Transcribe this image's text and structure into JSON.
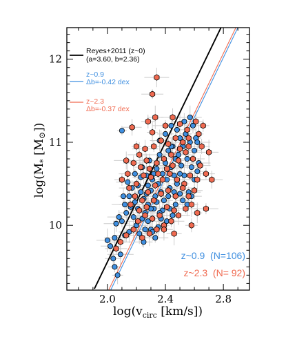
{
  "chart_data": {
    "type": "scatter",
    "xlabel": "log(v",
    "xlabel_sub": "circ",
    "xlabel_tail": " [km/s])",
    "ylabel": "log(M",
    "ylabel_sub": "*",
    "ylabel_tail": " [M",
    "ylabel_end": "])",
    "xlim": [
      1.72,
      2.98
    ],
    "ylim": [
      9.22,
      12.38
    ],
    "xticks": [
      "2.0",
      "2.4",
      "2.8"
    ],
    "yticks": [
      "10",
      "11",
      "12"
    ],
    "colors": {
      "low_z": "#3f8fe0",
      "high_z": "#f06a50",
      "relation": "#000000",
      "errbar": "#cccccc"
    },
    "legend": {
      "reyes_title": "Reyes+2011 (z~0)",
      "reyes_params": "(a=3.60, b=2.36)",
      "low_title": "z~0.9",
      "low_offset": "Δb=-0.42 dex",
      "high_title": "z~2.3",
      "high_offset": "Δb=-0.37 dex"
    },
    "counts": {
      "low": "z~0.9  (N=106)",
      "high": "z~2.3  (N= 92)"
    },
    "relations": [
      {
        "name": "Reyes+2011 (z~0)",
        "slope": 3.6,
        "intercept": 2.36,
        "x_range": [
          1.91,
          2.95
        ]
      },
      {
        "name": "z~0.9",
        "slope": 3.6,
        "intercept": 1.94,
        "x_range": [
          2.0,
          2.95
        ]
      },
      {
        "name": "z~2.3",
        "slope": 3.6,
        "intercept": 1.99,
        "x_range": [
          1.98,
          2.95
        ]
      }
    ],
    "series": [
      {
        "name": "z~0.9",
        "marker": "circle",
        "points": [
          [
            2.1,
            11.14
          ],
          [
            2.06,
            10.02
          ],
          [
            2.0,
            9.82
          ],
          [
            2.02,
            9.75
          ],
          [
            2.04,
            9.6
          ],
          [
            2.05,
            9.5
          ],
          [
            2.07,
            9.4
          ],
          [
            2.09,
            9.65
          ],
          [
            2.12,
            9.88
          ],
          [
            2.15,
            9.92
          ],
          [
            2.1,
            10.05
          ],
          [
            2.13,
            10.15
          ],
          [
            2.16,
            10.22
          ],
          [
            2.11,
            10.35
          ],
          [
            2.18,
            10.1
          ],
          [
            2.2,
            10.0
          ],
          [
            2.22,
            9.9
          ],
          [
            2.19,
            10.28
          ],
          [
            2.23,
            10.4
          ],
          [
            2.25,
            10.32
          ],
          [
            2.17,
            10.45
          ],
          [
            2.14,
            10.52
          ],
          [
            2.26,
            10.15
          ],
          [
            2.28,
            10.25
          ],
          [
            2.3,
            10.42
          ],
          [
            2.27,
            10.6
          ],
          [
            2.24,
            10.7
          ],
          [
            2.29,
            10.78
          ],
          [
            2.31,
            10.55
          ],
          [
            2.33,
            10.35
          ],
          [
            2.32,
            10.2
          ],
          [
            2.35,
            10.5
          ],
          [
            2.34,
            10.68
          ],
          [
            2.36,
            10.85
          ],
          [
            2.38,
            10.62
          ],
          [
            2.37,
            10.4
          ],
          [
            2.39,
            10.3
          ],
          [
            2.41,
            10.55
          ],
          [
            2.4,
            10.75
          ],
          [
            2.42,
            10.9
          ],
          [
            2.44,
            10.7
          ],
          [
            2.43,
            10.45
          ],
          [
            2.45,
            10.95
          ],
          [
            2.46,
            10.6
          ],
          [
            2.47,
            10.8
          ],
          [
            2.48,
            10.5
          ],
          [
            2.49,
            10.85
          ],
          [
            2.5,
            11.05
          ],
          [
            2.51,
            10.72
          ],
          [
            2.52,
            10.95
          ],
          [
            2.53,
            10.6
          ],
          [
            2.54,
            11.1
          ],
          [
            2.55,
            10.8
          ],
          [
            2.56,
            10.4
          ],
          [
            2.57,
            11.0
          ],
          [
            2.58,
            10.7
          ],
          [
            2.59,
            11.2
          ],
          [
            2.6,
            10.9
          ],
          [
            2.61,
            11.05
          ],
          [
            2.62,
            11.0
          ],
          [
            2.63,
            10.75
          ],
          [
            2.58,
            10.35
          ],
          [
            2.55,
            10.25
          ],
          [
            2.52,
            10.3
          ],
          [
            2.5,
            10.38
          ],
          [
            2.47,
            10.25
          ],
          [
            2.45,
            10.12
          ],
          [
            2.43,
            10.2
          ],
          [
            2.41,
            10.05
          ],
          [
            2.39,
            9.95
          ],
          [
            2.37,
            10.08
          ],
          [
            2.35,
            9.98
          ],
          [
            2.33,
            9.85
          ],
          [
            2.3,
            9.95
          ],
          [
            2.28,
            10.05
          ],
          [
            2.26,
            9.95
          ],
          [
            2.24,
            10.08
          ],
          [
            2.21,
            10.2
          ],
          [
            2.21,
            10.48
          ],
          [
            2.28,
            10.48
          ],
          [
            2.32,
            10.62
          ],
          [
            2.36,
            11.02
          ],
          [
            2.4,
            11.1
          ],
          [
            2.44,
            11.2
          ],
          [
            2.48,
            11.15
          ],
          [
            2.53,
            11.25
          ],
          [
            2.57,
            11.3
          ],
          [
            2.6,
            10.55
          ],
          [
            2.62,
            10.65
          ],
          [
            2.46,
            10.4
          ],
          [
            2.42,
            10.35
          ],
          [
            2.38,
            10.18
          ],
          [
            2.34,
            10.28
          ],
          [
            2.3,
            10.2
          ],
          [
            2.27,
            10.38
          ],
          [
            2.23,
            10.58
          ],
          [
            2.19,
            10.62
          ],
          [
            2.15,
            10.35
          ],
          [
            2.12,
            10.25
          ],
          [
            2.08,
            10.1
          ],
          [
            2.05,
            9.85
          ],
          [
            2.25,
            9.8
          ],
          [
            2.31,
            9.92
          ],
          [
            2.36,
            10.15
          ],
          [
            2.44,
            10.95
          ],
          [
            2.5,
            10.62
          ]
        ]
      },
      {
        "name": "z~2.3",
        "marker": "hexagon",
        "points": [
          [
            2.34,
            11.78
          ],
          [
            2.31,
            11.58
          ],
          [
            2.17,
            11.18
          ],
          [
            2.33,
            11.3
          ],
          [
            2.28,
            11.25
          ],
          [
            2.31,
            11.12
          ],
          [
            2.4,
            11.2
          ],
          [
            2.45,
            11.3
          ],
          [
            2.5,
            11.22
          ],
          [
            2.55,
            11.15
          ],
          [
            2.61,
            11.25
          ],
          [
            2.66,
            11.2
          ],
          [
            2.63,
            11.1
          ],
          [
            2.56,
            11.05
          ],
          [
            2.52,
            11.0
          ],
          [
            2.47,
            11.05
          ],
          [
            2.42,
            10.98
          ],
          [
            2.37,
            11.02
          ],
          [
            2.32,
            10.95
          ],
          [
            2.26,
            10.92
          ],
          [
            2.22,
            10.85
          ],
          [
            2.18,
            10.75
          ],
          [
            2.14,
            10.62
          ],
          [
            2.1,
            10.55
          ],
          [
            2.15,
            10.45
          ],
          [
            2.2,
            10.5
          ],
          [
            2.25,
            10.6
          ],
          [
            2.29,
            10.68
          ],
          [
            2.34,
            10.75
          ],
          [
            2.39,
            10.8
          ],
          [
            2.44,
            10.85
          ],
          [
            2.49,
            10.78
          ],
          [
            2.54,
            10.88
          ],
          [
            2.59,
            10.8
          ],
          [
            2.64,
            10.72
          ],
          [
            2.68,
            10.62
          ],
          [
            2.62,
            10.55
          ],
          [
            2.57,
            10.6
          ],
          [
            2.53,
            10.5
          ],
          [
            2.48,
            10.55
          ],
          [
            2.43,
            10.62
          ],
          [
            2.38,
            10.55
          ],
          [
            2.33,
            10.48
          ],
          [
            2.28,
            10.4
          ],
          [
            2.24,
            10.3
          ],
          [
            2.19,
            10.35
          ],
          [
            2.16,
            10.25
          ],
          [
            2.22,
            10.18
          ],
          [
            2.27,
            10.22
          ],
          [
            2.32,
            10.3
          ],
          [
            2.37,
            10.38
          ],
          [
            2.42,
            10.42
          ],
          [
            2.47,
            10.35
          ],
          [
            2.52,
            10.45
          ],
          [
            2.56,
            10.35
          ],
          [
            2.6,
            10.42
          ],
          [
            2.58,
            10.25
          ],
          [
            2.46,
            10.18
          ],
          [
            2.41,
            10.22
          ],
          [
            2.36,
            10.12
          ],
          [
            2.31,
            10.08
          ],
          [
            2.26,
            10.12
          ],
          [
            2.21,
            10.05
          ],
          [
            2.18,
            9.95
          ],
          [
            2.13,
            9.88
          ],
          [
            2.09,
            9.8
          ],
          [
            2.06,
            9.72
          ],
          [
            2.24,
            9.85
          ],
          [
            2.29,
            9.9
          ],
          [
            2.34,
            9.95
          ],
          [
            2.39,
            10.0
          ],
          [
            2.44,
            10.05
          ],
          [
            2.49,
            10.12
          ],
          [
            2.54,
            10.2
          ],
          [
            2.39,
            9.95
          ],
          [
            2.46,
            9.9
          ],
          [
            2.58,
            10.0
          ],
          [
            2.62,
            10.15
          ],
          [
            2.68,
            10.2
          ],
          [
            2.72,
            10.55
          ],
          [
            2.7,
            10.88
          ],
          [
            2.65,
            10.95
          ],
          [
            2.56,
            10.95
          ],
          [
            2.5,
            10.92
          ],
          [
            2.45,
            10.72
          ],
          [
            2.41,
            10.68
          ],
          [
            2.35,
            10.62
          ],
          [
            2.3,
            10.58
          ],
          [
            2.27,
            10.78
          ],
          [
            2.23,
            10.7
          ],
          [
            2.2,
            10.95
          ],
          [
            2.13,
            10.78
          ]
        ]
      }
    ]
  }
}
